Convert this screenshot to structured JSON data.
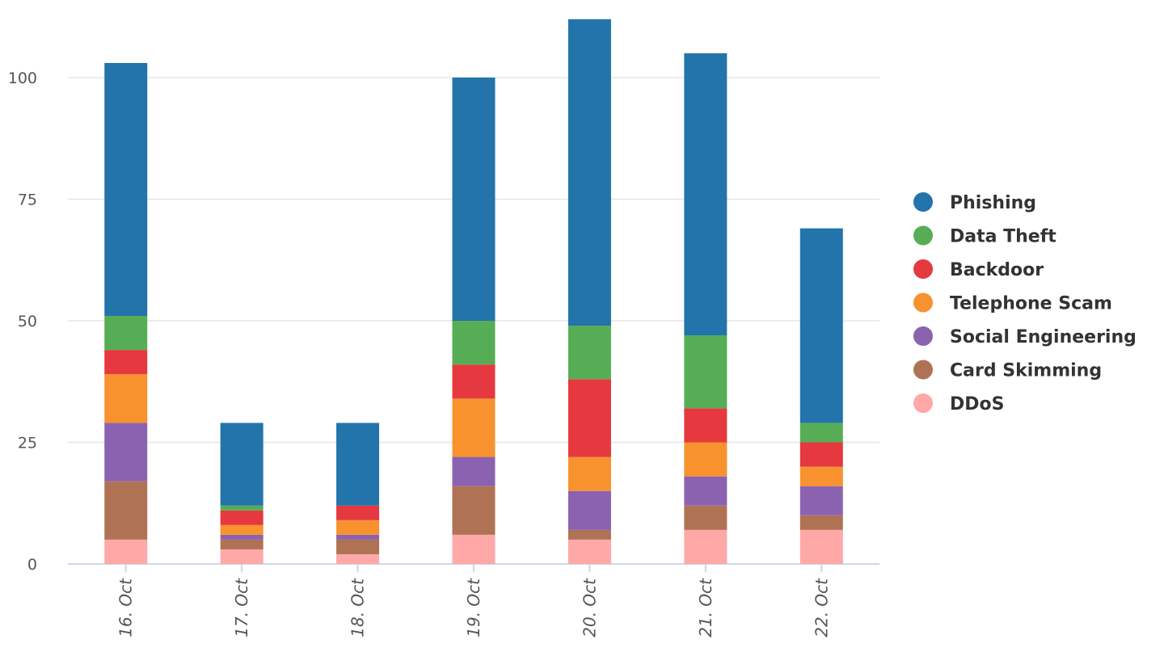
{
  "chart_data": {
    "type": "bar",
    "stacked": true,
    "categories": [
      "16. Oct",
      "17. Oct",
      "18. Oct",
      "19. Oct",
      "20. Oct",
      "21. Oct",
      "22. Oct"
    ],
    "ylim": [
      0,
      112
    ],
    "yticks": [
      "0",
      "25",
      "50",
      "75",
      "100"
    ],
    "grid": true,
    "legend_position": "right",
    "series": [
      {
        "name": "DDoS",
        "color": "#ffa8a8",
        "values": [
          5,
          3,
          2,
          6,
          5,
          7,
          7
        ]
      },
      {
        "name": "Card Skimming",
        "color": "#b07255",
        "values": [
          12,
          2,
          3,
          10,
          2,
          5,
          3
        ]
      },
      {
        "name": "Social Engineering",
        "color": "#8b62b0",
        "values": [
          12,
          1,
          1,
          6,
          8,
          6,
          6
        ]
      },
      {
        "name": "Telephone Scam",
        "color": "#f7922f",
        "values": [
          10,
          2,
          3,
          12,
          7,
          7,
          4
        ]
      },
      {
        "name": "Backdoor",
        "color": "#e5393f",
        "values": [
          5,
          3,
          3,
          7,
          16,
          7,
          5
        ]
      },
      {
        "name": "Data Theft",
        "color": "#57ad56",
        "values": [
          7,
          1,
          0,
          9,
          11,
          15,
          4
        ]
      },
      {
        "name": "Phishing",
        "color": "#2274ab",
        "values": [
          52,
          17,
          17,
          50,
          63,
          58,
          40
        ]
      }
    ],
    "legend_order": [
      "Phishing",
      "Data Theft",
      "Backdoor",
      "Telephone Scam",
      "Social Engineering",
      "Card Skimming",
      "DDoS"
    ]
  }
}
